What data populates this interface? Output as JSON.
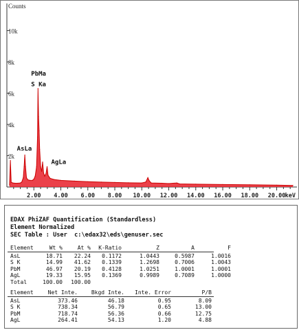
{
  "chart_data": {
    "type": "line",
    "title": "",
    "ylabel": "Counts",
    "xlabel": "keV",
    "xlim": [
      0,
      21.5
    ],
    "ylim": [
      0,
      11300
    ],
    "x_ticks": [
      "2.00",
      "4.00",
      "6.00",
      "8.00",
      "10.00",
      "12.00",
      "14.00",
      "16.00",
      "18.00",
      "20.00"
    ],
    "x_tick_values": [
      2,
      4,
      6,
      8,
      10,
      12,
      14,
      16,
      18,
      20
    ],
    "y_ticks": [
      "2k",
      "4k",
      "6k",
      "8k",
      "10k"
    ],
    "y_tick_values": [
      2000,
      4000,
      6000,
      8000,
      10000
    ],
    "series": [
      {
        "points": [
          [
            0.2,
            120
          ],
          [
            0.26,
            1700
          ],
          [
            0.32,
            300
          ],
          [
            0.45,
            260
          ],
          [
            0.6,
            240
          ],
          [
            0.8,
            240
          ],
          [
            1.0,
            260
          ],
          [
            1.1,
            310
          ],
          [
            1.22,
            600
          ],
          [
            1.28,
            1300
          ],
          [
            1.33,
            2050
          ],
          [
            1.38,
            1300
          ],
          [
            1.45,
            600
          ],
          [
            1.55,
            460
          ],
          [
            1.7,
            420
          ],
          [
            1.9,
            430
          ],
          [
            2.0,
            500
          ],
          [
            2.1,
            700
          ],
          [
            2.2,
            1300
          ],
          [
            2.27,
            3200
          ],
          [
            2.31,
            6300
          ],
          [
            2.35,
            4500
          ],
          [
            2.39,
            3600
          ],
          [
            2.43,
            2400
          ],
          [
            2.5,
            1300
          ],
          [
            2.58,
            1000
          ],
          [
            2.65,
            1600
          ],
          [
            2.72,
            900
          ],
          [
            2.8,
            700
          ],
          [
            2.9,
            850
          ],
          [
            2.98,
            1300
          ],
          [
            3.05,
            750
          ],
          [
            3.2,
            560
          ],
          [
            3.5,
            480
          ],
          [
            4.0,
            420
          ],
          [
            5.0,
            380
          ],
          [
            6.0,
            340
          ],
          [
            7.0,
            310
          ],
          [
            8.0,
            290
          ],
          [
            9.0,
            270
          ],
          [
            10.0,
            260
          ],
          [
            10.3,
            320
          ],
          [
            10.45,
            600
          ],
          [
            10.55,
            400
          ],
          [
            10.7,
            260
          ],
          [
            11.5,
            240
          ],
          [
            12.0,
            220
          ],
          [
            12.6,
            260
          ],
          [
            12.8,
            200
          ],
          [
            14.0,
            180
          ],
          [
            16.0,
            160
          ],
          [
            18.0,
            140
          ],
          [
            20.0,
            120
          ],
          [
            21.2,
            100
          ]
        ]
      }
    ],
    "annotations": [
      {
        "text": "PbMa",
        "x": 2.35,
        "y": 6850
      },
      {
        "text": "S Ka",
        "x": 2.35,
        "y": 6300
      },
      {
        "text": "AsLa",
        "x": 1.3,
        "y": 2150
      },
      {
        "text": "AgLa",
        "x": 2.98,
        "y": 1300
      }
    ],
    "colors": {
      "line": "#cc0000",
      "fill": "#e8202a"
    },
    "grid": false
  },
  "report": {
    "title_lines": [
      "EDAX PhiZAF Quantification (Standardless)",
      "Element Normalized",
      "SEC Table : User  c:\\edax32\\eds\\genuser.sec"
    ],
    "table1": {
      "headers": [
        "Element",
        "Wt %",
        "At %",
        "K-Ratio",
        "Z",
        "A",
        "F"
      ],
      "rows": [
        [
          "AsL",
          "18.71",
          "22.24",
          "0.1172",
          "1.0443",
          "0.5987",
          "1.0016"
        ],
        [
          "S K",
          "14.99",
          "41.62",
          "0.1339",
          "1.2698",
          "0.7006",
          "1.0043"
        ],
        [
          "PbM",
          "46.97",
          "20.19",
          "0.4128",
          "1.0251",
          "1.0001",
          "1.0001"
        ],
        [
          "AgL",
          "19.33",
          "15.95",
          "0.1369",
          "0.9989",
          "0.7089",
          "1.0000"
        ],
        [
          "Total",
          "100.00",
          "100.00",
          "",
          "",
          "",
          ""
        ]
      ]
    },
    "table2": {
      "headers": [
        "Element",
        "Net Inte.",
        "Bkgd Inte.",
        "Inte. Error",
        "P/B"
      ],
      "rows": [
        [
          "AsL",
          "373.46",
          "46.18",
          "0.95",
          "8.09"
        ],
        [
          "S K",
          "738.34",
          "56.79",
          "0.65",
          "13.00"
        ],
        [
          "PbM",
          "718.74",
          "56.36",
          "0.66",
          "12.75"
        ],
        [
          "AgL",
          "264.41",
          "54.13",
          "1.20",
          "4.88"
        ]
      ]
    }
  }
}
